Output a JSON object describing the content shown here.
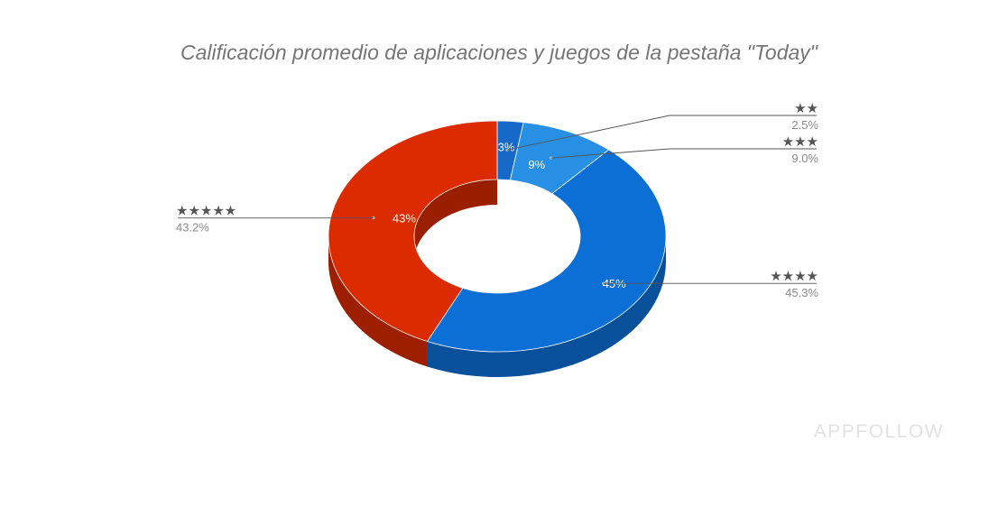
{
  "chart_data": {
    "type": "pie",
    "variant": "3d-donut",
    "title": "Calificación promedio de aplicaciones y juegos de la pestaña \"Today\"",
    "slices": [
      {
        "label": "★★",
        "value": 2.5,
        "value_label": "2.5%",
        "slice_label": "3%",
        "color": "#1769c9"
      },
      {
        "label": "★★★",
        "value": 9.0,
        "value_label": "9.0%",
        "slice_label": "9%",
        "color": "#2790e4"
      },
      {
        "label": "★★★★",
        "value": 45.3,
        "value_label": "45.3%",
        "slice_label": "45%",
        "color": "#0b6fd6"
      },
      {
        "label": "★★★★★",
        "value": 43.2,
        "value_label": "43.2%",
        "slice_label": "43%",
        "color": "#dc2b00"
      }
    ]
  },
  "watermark": "APPFOLLOW"
}
